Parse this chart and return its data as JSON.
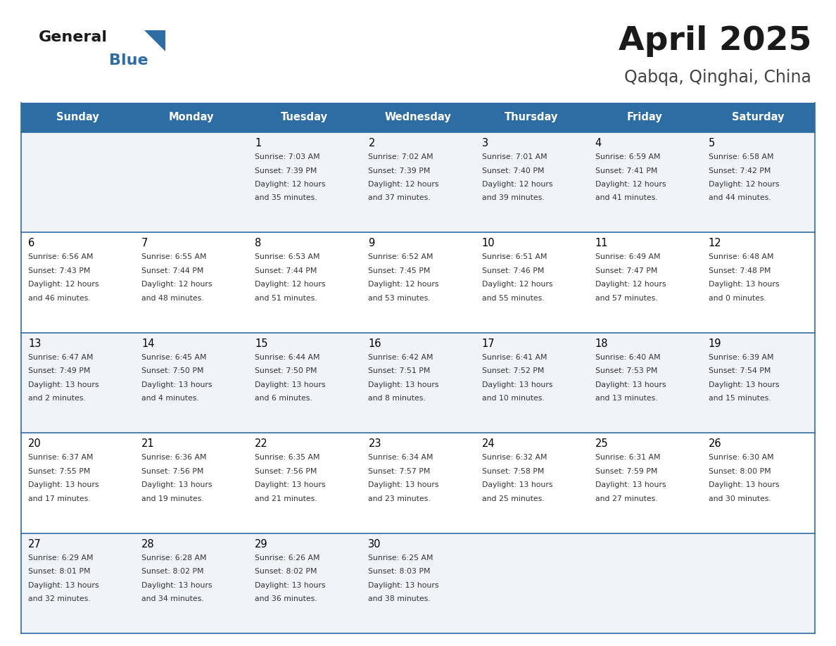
{
  "title": "April 2025",
  "subtitle": "Qabqa, Qinghai, China",
  "days_of_week": [
    "Sunday",
    "Monday",
    "Tuesday",
    "Wednesday",
    "Thursday",
    "Friday",
    "Saturday"
  ],
  "header_bg": "#2E6DA4",
  "header_text": "#FFFFFF",
  "row_bg_light": "#F0F4F8",
  "row_bg_white": "#FFFFFF",
  "cell_border_color": "#2E6DA4",
  "day_number_color": "#000000",
  "info_text_color": "#333333",
  "title_color": "#1a1a1a",
  "subtitle_color": "#444444",
  "calendar_data": [
    [
      {
        "day": "",
        "sunrise": "",
        "sunset": "",
        "daylight": ""
      },
      {
        "day": "",
        "sunrise": "",
        "sunset": "",
        "daylight": ""
      },
      {
        "day": "1",
        "sunrise": "7:03 AM",
        "sunset": "7:39 PM",
        "daylight": "12 hours and 35 minutes."
      },
      {
        "day": "2",
        "sunrise": "7:02 AM",
        "sunset": "7:39 PM",
        "daylight": "12 hours and 37 minutes."
      },
      {
        "day": "3",
        "sunrise": "7:01 AM",
        "sunset": "7:40 PM",
        "daylight": "12 hours and 39 minutes."
      },
      {
        "day": "4",
        "sunrise": "6:59 AM",
        "sunset": "7:41 PM",
        "daylight": "12 hours and 41 minutes."
      },
      {
        "day": "5",
        "sunrise": "6:58 AM",
        "sunset": "7:42 PM",
        "daylight": "12 hours and 44 minutes."
      }
    ],
    [
      {
        "day": "6",
        "sunrise": "6:56 AM",
        "sunset": "7:43 PM",
        "daylight": "12 hours and 46 minutes."
      },
      {
        "day": "7",
        "sunrise": "6:55 AM",
        "sunset": "7:44 PM",
        "daylight": "12 hours and 48 minutes."
      },
      {
        "day": "8",
        "sunrise": "6:53 AM",
        "sunset": "7:44 PM",
        "daylight": "12 hours and 51 minutes."
      },
      {
        "day": "9",
        "sunrise": "6:52 AM",
        "sunset": "7:45 PM",
        "daylight": "12 hours and 53 minutes."
      },
      {
        "day": "10",
        "sunrise": "6:51 AM",
        "sunset": "7:46 PM",
        "daylight": "12 hours and 55 minutes."
      },
      {
        "day": "11",
        "sunrise": "6:49 AM",
        "sunset": "7:47 PM",
        "daylight": "12 hours and 57 minutes."
      },
      {
        "day": "12",
        "sunrise": "6:48 AM",
        "sunset": "7:48 PM",
        "daylight": "13 hours and 0 minutes."
      }
    ],
    [
      {
        "day": "13",
        "sunrise": "6:47 AM",
        "sunset": "7:49 PM",
        "daylight": "13 hours and 2 minutes."
      },
      {
        "day": "14",
        "sunrise": "6:45 AM",
        "sunset": "7:50 PM",
        "daylight": "13 hours and 4 minutes."
      },
      {
        "day": "15",
        "sunrise": "6:44 AM",
        "sunset": "7:50 PM",
        "daylight": "13 hours and 6 minutes."
      },
      {
        "day": "16",
        "sunrise": "6:42 AM",
        "sunset": "7:51 PM",
        "daylight": "13 hours and 8 minutes."
      },
      {
        "day": "17",
        "sunrise": "6:41 AM",
        "sunset": "7:52 PM",
        "daylight": "13 hours and 10 minutes."
      },
      {
        "day": "18",
        "sunrise": "6:40 AM",
        "sunset": "7:53 PM",
        "daylight": "13 hours and 13 minutes."
      },
      {
        "day": "19",
        "sunrise": "6:39 AM",
        "sunset": "7:54 PM",
        "daylight": "13 hours and 15 minutes."
      }
    ],
    [
      {
        "day": "20",
        "sunrise": "6:37 AM",
        "sunset": "7:55 PM",
        "daylight": "13 hours and 17 minutes."
      },
      {
        "day": "21",
        "sunrise": "6:36 AM",
        "sunset": "7:56 PM",
        "daylight": "13 hours and 19 minutes."
      },
      {
        "day": "22",
        "sunrise": "6:35 AM",
        "sunset": "7:56 PM",
        "daylight": "13 hours and 21 minutes."
      },
      {
        "day": "23",
        "sunrise": "6:34 AM",
        "sunset": "7:57 PM",
        "daylight": "13 hours and 23 minutes."
      },
      {
        "day": "24",
        "sunrise": "6:32 AM",
        "sunset": "7:58 PM",
        "daylight": "13 hours and 25 minutes."
      },
      {
        "day": "25",
        "sunrise": "6:31 AM",
        "sunset": "7:59 PM",
        "daylight": "13 hours and 27 minutes."
      },
      {
        "day": "26",
        "sunrise": "6:30 AM",
        "sunset": "8:00 PM",
        "daylight": "13 hours and 30 minutes."
      }
    ],
    [
      {
        "day": "27",
        "sunrise": "6:29 AM",
        "sunset": "8:01 PM",
        "daylight": "13 hours and 32 minutes."
      },
      {
        "day": "28",
        "sunrise": "6:28 AM",
        "sunset": "8:02 PM",
        "daylight": "13 hours and 34 minutes."
      },
      {
        "day": "29",
        "sunrise": "6:26 AM",
        "sunset": "8:02 PM",
        "daylight": "13 hours and 36 minutes."
      },
      {
        "day": "30",
        "sunrise": "6:25 AM",
        "sunset": "8:03 PM",
        "daylight": "13 hours and 38 minutes."
      },
      {
        "day": "",
        "sunrise": "",
        "sunset": "",
        "daylight": ""
      },
      {
        "day": "",
        "sunrise": "",
        "sunset": "",
        "daylight": ""
      },
      {
        "day": "",
        "sunrise": "",
        "sunset": "",
        "daylight": ""
      }
    ]
  ]
}
